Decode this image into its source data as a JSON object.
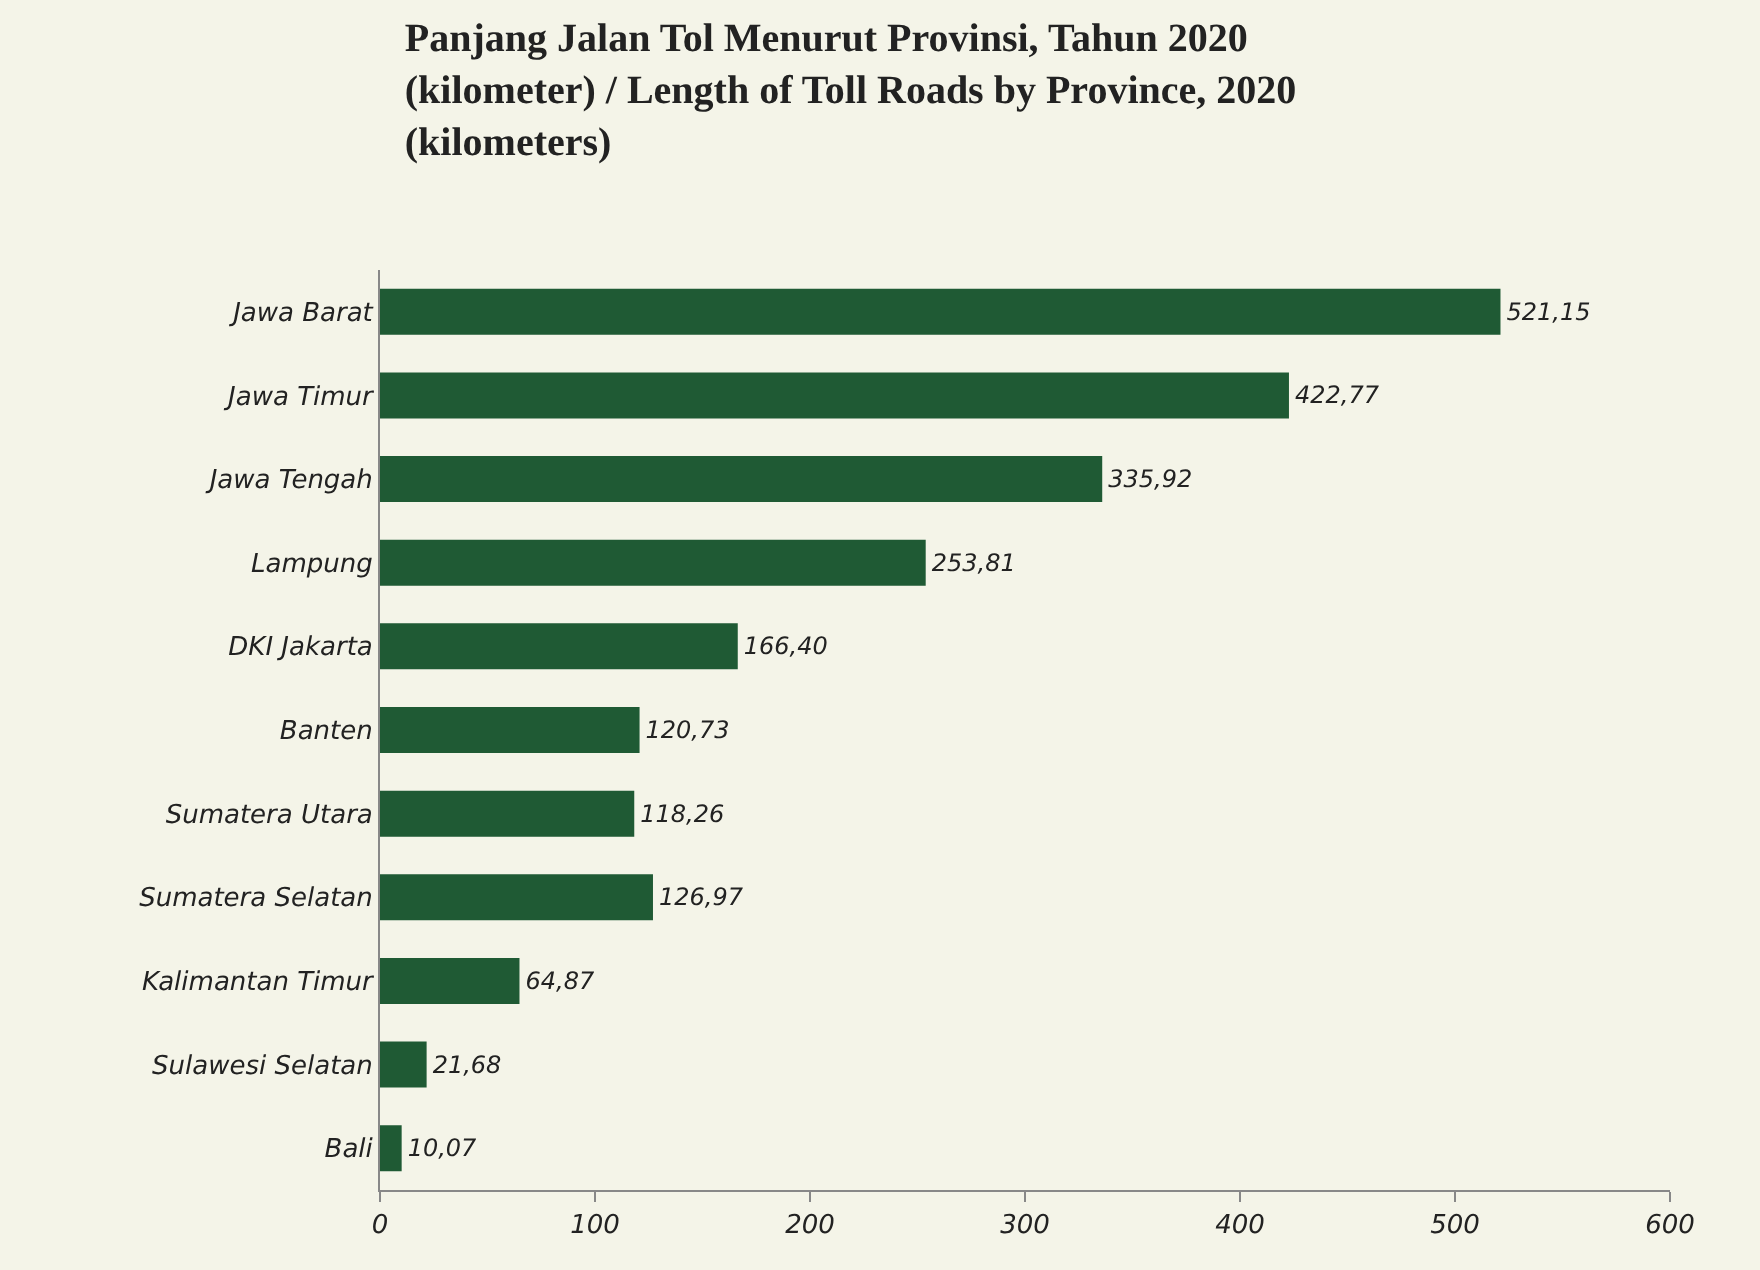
{
  "chart_data": {
    "type": "bar",
    "orientation": "horizontal",
    "title": "Panjang Jalan Tol Menurut Provinsi, Tahun 2020 (kilometer) / Length of Toll Roads by Province, 2020 (kilometers)",
    "categories": [
      "Jawa Barat",
      "Jawa Timur",
      "Jawa Tengah",
      "Lampung",
      "DKI Jakarta",
      "Banten",
      "Sumatera Utara",
      "Sumatera Selatan",
      "Kalimantan Timur",
      "Sulawesi Selatan",
      "Bali"
    ],
    "values": [
      521.15,
      422.77,
      335.92,
      253.81,
      166.4,
      120.73,
      118.26,
      126.97,
      64.87,
      21.68,
      10.07
    ],
    "value_labels": [
      "521,15",
      "422,77",
      "335,92",
      "253,81",
      "166,40",
      "120,73",
      "118,26",
      "126,97",
      "64,87",
      "21,68",
      "10,07"
    ],
    "color": "#1f5a34",
    "xlim": [
      0,
      600
    ],
    "xticks": [
      0,
      100,
      200,
      300,
      400,
      500,
      600
    ],
    "grid": false
  }
}
